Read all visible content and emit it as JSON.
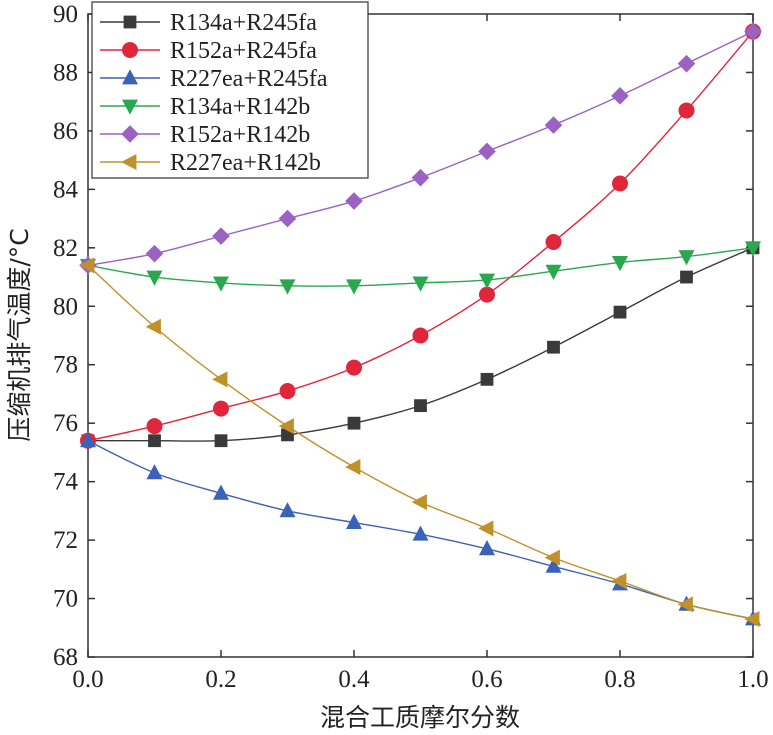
{
  "chart_data": {
    "type": "line",
    "xlabel": "混合工质摩尔分数",
    "ylabel": "压缩机排气温度/°C",
    "xlim": [
      0.0,
      1.0
    ],
    "ylim": [
      68,
      90
    ],
    "x_ticks": [
      "0.0",
      "0.2",
      "0.4",
      "0.6",
      "0.8",
      "1.0"
    ],
    "y_ticks": [
      "68",
      "70",
      "72",
      "74",
      "76",
      "78",
      "80",
      "82",
      "84",
      "86",
      "88",
      "90"
    ],
    "legend_position": "top-left",
    "x": [
      0.0,
      0.1,
      0.2,
      0.3,
      0.4,
      0.5,
      0.6,
      0.7,
      0.8,
      0.9,
      1.0
    ],
    "series": [
      {
        "name": "R134a+R245fa",
        "color": "#3a3a3a",
        "marker": "square",
        "values": [
          75.4,
          75.4,
          75.4,
          75.6,
          76.0,
          76.6,
          77.5,
          78.6,
          79.8,
          81.0,
          82.0
        ]
      },
      {
        "name": "R152a+R245fa",
        "color": "#e0263a",
        "marker": "circle",
        "values": [
          75.4,
          75.9,
          76.5,
          77.1,
          77.9,
          79.0,
          80.4,
          82.2,
          84.2,
          86.7,
          89.4
        ]
      },
      {
        "name": "R227ea+R245fa",
        "color": "#3a62b8",
        "marker": "triangle-up",
        "values": [
          75.4,
          74.3,
          73.6,
          73.0,
          72.6,
          72.2,
          71.7,
          71.1,
          70.5,
          69.8,
          69.3
        ]
      },
      {
        "name": "R134a+R142b",
        "color": "#2aa84f",
        "marker": "triangle-down",
        "values": [
          81.4,
          81.0,
          80.8,
          80.7,
          80.7,
          80.8,
          80.9,
          81.2,
          81.5,
          81.7,
          82.0
        ]
      },
      {
        "name": "R152a+R142b",
        "color": "#9a62c2",
        "marker": "diamond",
        "values": [
          81.4,
          81.8,
          82.4,
          83.0,
          83.6,
          84.4,
          85.3,
          86.2,
          87.2,
          88.3,
          89.4
        ]
      },
      {
        "name": "R227ea+R142b",
        "color": "#c0902a",
        "marker": "triangle-left",
        "values": [
          81.4,
          79.3,
          77.5,
          75.9,
          74.5,
          73.3,
          72.4,
          71.4,
          70.6,
          69.8,
          69.3
        ]
      }
    ]
  }
}
